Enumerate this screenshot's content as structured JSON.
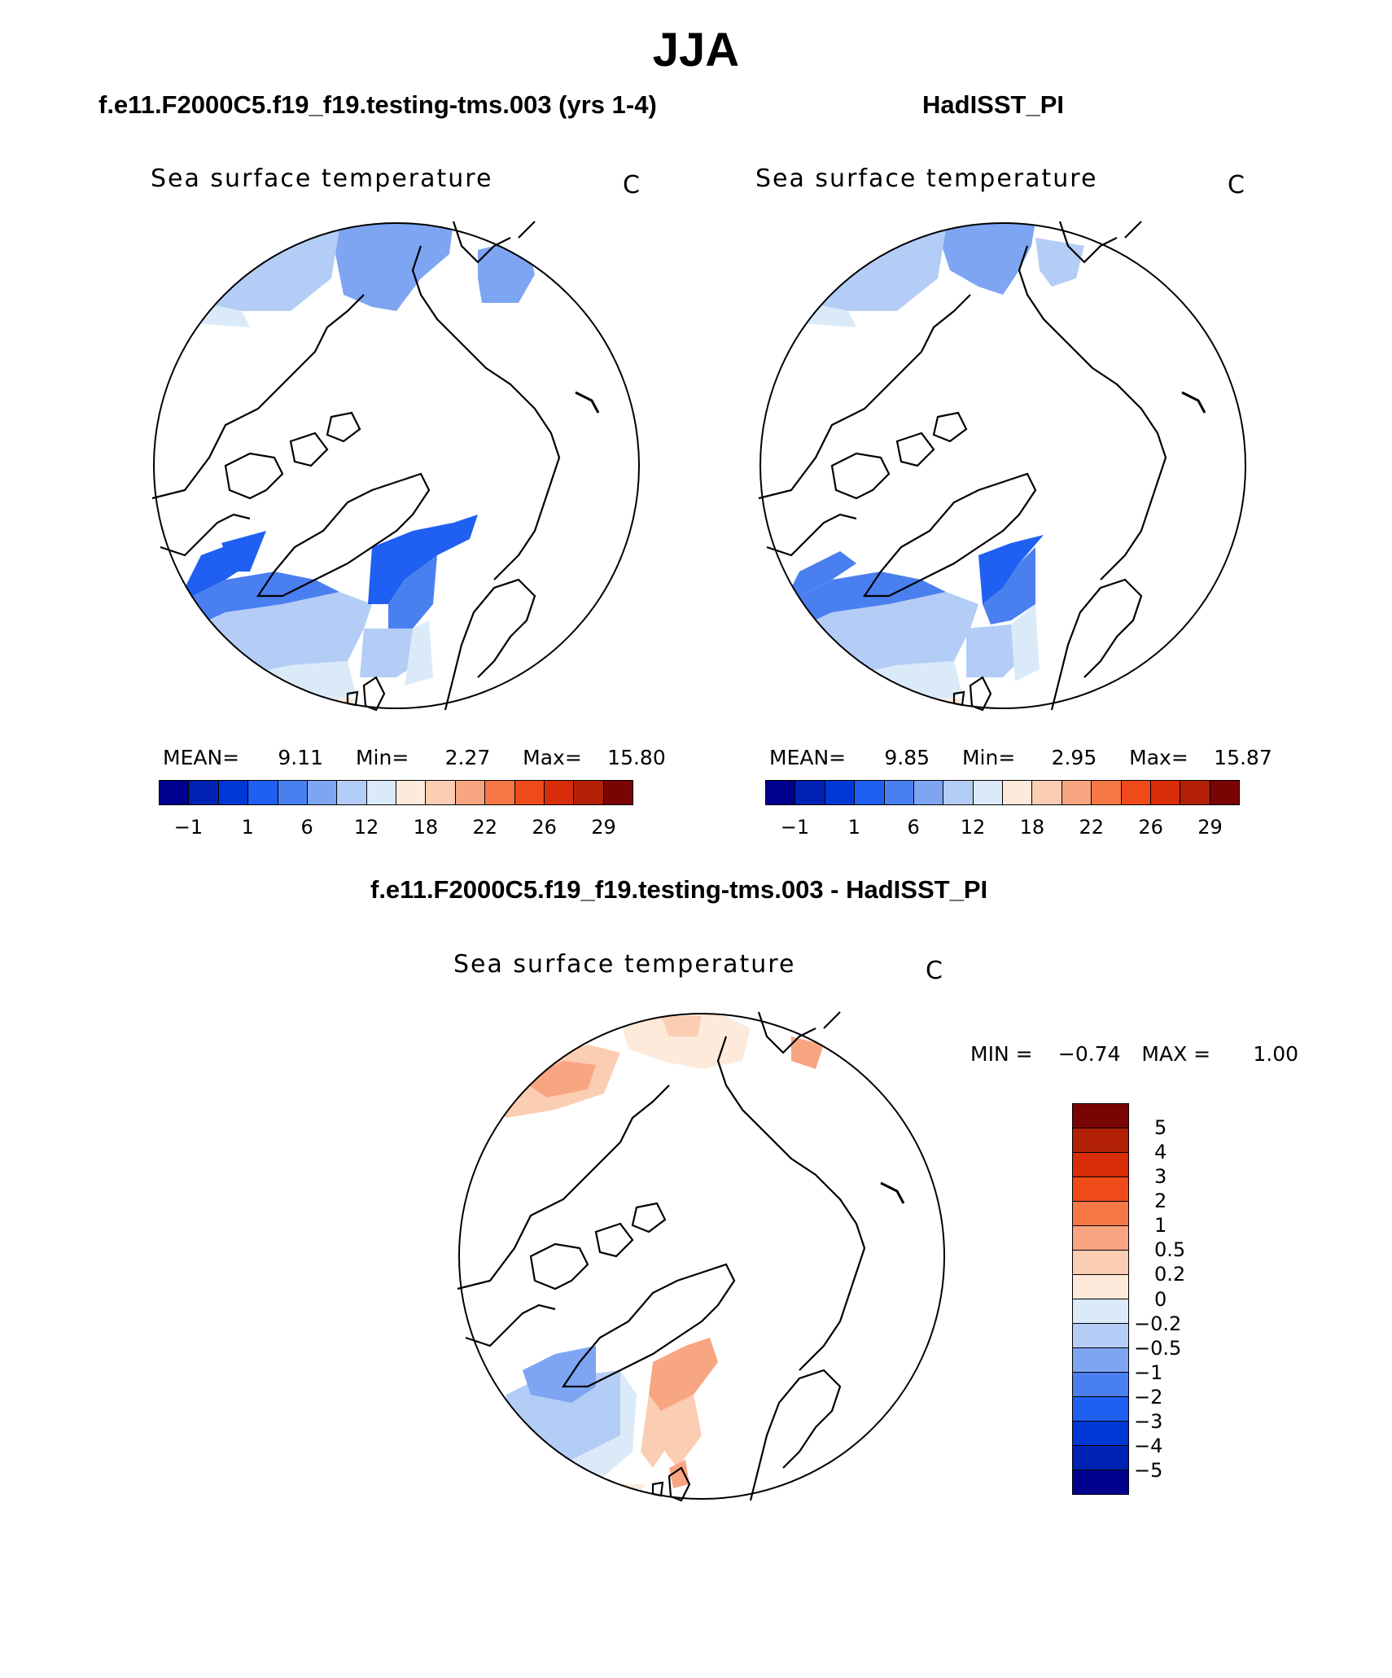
{
  "figure": {
    "title": "JJA"
  },
  "panels": [
    {
      "title": "f.e11.F2000C5.f19_f19.testing-tms.003 (yrs 1-4)",
      "variable": "Sea surface temperature",
      "units": "C",
      "stats": {
        "mean_label": "MEAN=",
        "mean": "9.11",
        "min_label": "Min=",
        "min": "2.27",
        "max_label": "Max=",
        "max": "15.80"
      }
    },
    {
      "title": "HadISST_PI",
      "variable": "Sea surface temperature",
      "units": "C",
      "stats": {
        "mean_label": "MEAN=",
        "mean": "9.85",
        "min_label": "Min=",
        "min": "2.95",
        "max_label": "Max=",
        "max": "15.87"
      }
    },
    {
      "title": "f.e11.F2000C5.f19_f19.testing-tms.003 - HadISST_PI",
      "variable": "Sea surface temperature",
      "units": "C",
      "minmax": {
        "min_label": "MIN =",
        "min": "−0.74",
        "max_label": "MAX =",
        "max": "1.00"
      }
    }
  ],
  "colorbar_abs": {
    "tick_labels": [
      "−1",
      "1",
      "6",
      "12",
      "18",
      "22",
      "26",
      "29"
    ],
    "colors": [
      "#00008f",
      "#0022b4",
      "#0038d6",
      "#1f5ff2",
      "#4a7ff0",
      "#7ea5f2",
      "#b4cdf6",
      "#daeaf9",
      "#fdeadb",
      "#fbcdb3",
      "#f8a582",
      "#f67847",
      "#ef4a1a",
      "#d92c09",
      "#b22006",
      "#7a0404"
    ]
  },
  "colorbar_diff": {
    "tick_labels": [
      "5",
      "4",
      "3",
      "2",
      "1",
      "0.5",
      "0.2",
      "0",
      "−0.2",
      "−0.5",
      "−1",
      "−2",
      "−3",
      "−4",
      "−5"
    ],
    "colors": [
      "#7a0404",
      "#b22006",
      "#d92c09",
      "#ef4a1a",
      "#f67847",
      "#f8a582",
      "#fbcdb3",
      "#fdeadb",
      "#daeaf9",
      "#b4cdf6",
      "#7ea5f2",
      "#4a7ff0",
      "#1f5ff2",
      "#0038d6",
      "#0022b4",
      "#00008f"
    ]
  }
}
